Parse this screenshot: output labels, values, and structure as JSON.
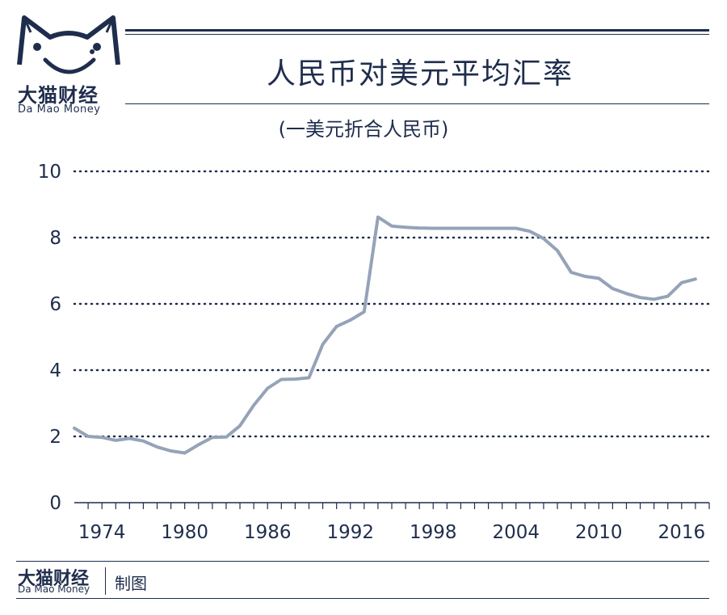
{
  "brand": {
    "name_cn": "大猫财经",
    "name_en": "Da Mao Money"
  },
  "footer": {
    "brand_cn": "大猫财经",
    "brand_en": "Da Mao Money",
    "made_by": "制图"
  },
  "colors": {
    "navy": "#1f2d4d",
    "line": "#95a3b8"
  },
  "chart_data": {
    "type": "line",
    "title": "人民币对美元平均汇率",
    "subtitle": "(一美元折合人民币)",
    "xlabel": "",
    "ylabel": "",
    "xlim": [
      1972,
      2018
    ],
    "ylim": [
      0,
      10
    ],
    "yticks": [
      0,
      2,
      4,
      6,
      8,
      10
    ],
    "xticks": [
      1974,
      1980,
      1986,
      1992,
      1998,
      2004,
      2010,
      2016
    ],
    "grid": "horizontal-dotted",
    "series": [
      {
        "x": [
          1972,
          1973,
          1974,
          1975,
          1976,
          1977,
          1978,
          1979,
          1980,
          1981,
          1982,
          1983,
          1984,
          1985,
          1986,
          1987,
          1988,
          1989,
          1990,
          1991,
          1992,
          1993,
          1994,
          1995,
          1996,
          1997,
          1998,
          1999,
          2000,
          2001,
          2002,
          2003,
          2004,
          2005,
          2006,
          2007,
          2008,
          2009,
          2010,
          2011,
          2012,
          2013,
          2014,
          2015,
          2016,
          2017
        ],
        "values": [
          2.25,
          2.0,
          1.97,
          1.88,
          1.94,
          1.86,
          1.68,
          1.56,
          1.5,
          1.75,
          1.97,
          1.98,
          2.32,
          2.94,
          3.45,
          3.72,
          3.73,
          3.77,
          4.78,
          5.32,
          5.51,
          5.76,
          8.62,
          8.35,
          8.31,
          8.29,
          8.28,
          8.28,
          8.28,
          8.28,
          8.28,
          8.28,
          8.28,
          8.19,
          7.97,
          7.61,
          6.95,
          6.83,
          6.77,
          6.46,
          6.31,
          6.19,
          6.14,
          6.23,
          6.64,
          6.75
        ]
      }
    ]
  }
}
